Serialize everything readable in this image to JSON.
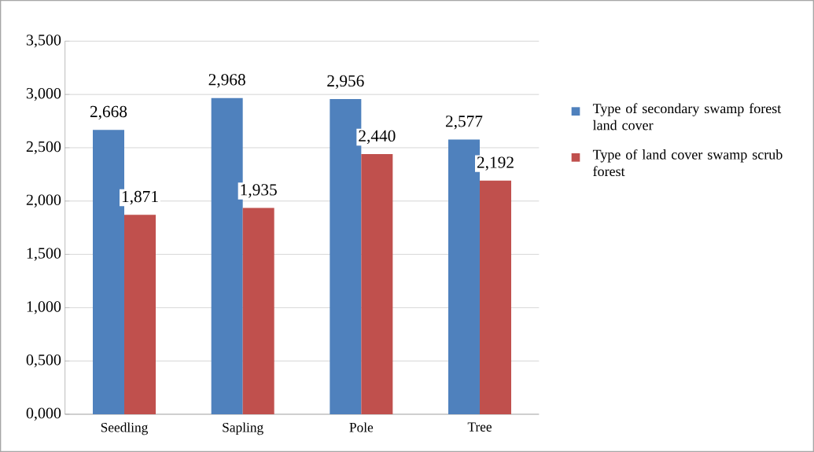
{
  "chart_data": {
    "type": "bar",
    "categories": [
      "Seedling",
      "Sapling",
      "Pole",
      "Tree"
    ],
    "series": [
      {
        "name": "Type of secondary swamp forest land cover",
        "color": "#4f81bd",
        "values": [
          2.668,
          2.968,
          2.956,
          2.577
        ],
        "value_labels": [
          "2,668",
          "2,968",
          "2,956",
          "2,577"
        ]
      },
      {
        "name": "Type of land cover swamp scrub forest",
        "color": "#c0504d",
        "values": [
          1.871,
          1.935,
          2.44,
          2.192
        ],
        "value_labels": [
          "1,871",
          "1,935",
          "2,440",
          "2,192"
        ]
      }
    ],
    "ylim": [
      0,
      3.5
    ],
    "yticks": [
      {
        "value": 0,
        "label": "0,000"
      },
      {
        "value": 0.5,
        "label": "0,500"
      },
      {
        "value": 1,
        "label": "1,000"
      },
      {
        "value": 1.5,
        "label": "1,500"
      },
      {
        "value": 2,
        "label": "2,000"
      },
      {
        "value": 2.5,
        "label": "2,500"
      },
      {
        "value": 3,
        "label": "3,000"
      },
      {
        "value": 3.5,
        "label": "3,500"
      }
    ],
    "grid": "y",
    "legend": "right"
  }
}
